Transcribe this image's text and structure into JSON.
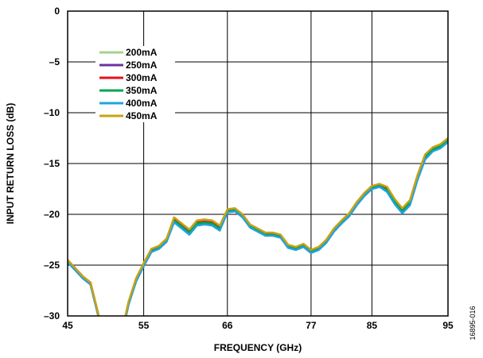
{
  "chart_data": {
    "type": "line",
    "title": "",
    "xlabel": "FREQUENCY (GHz)",
    "ylabel": "INPUT RETURN LOSS (dB)",
    "xlim": [
      45,
      95
    ],
    "ylim": [
      -30,
      0
    ],
    "x_ticks": [
      45,
      55,
      66,
      77,
      85,
      95
    ],
    "x_tick_labels": [
      "45",
      "55",
      "66",
      "77",
      "85",
      "95"
    ],
    "y_ticks": [
      0,
      -5,
      -10,
      -15,
      -20,
      -25,
      -30
    ],
    "y_tick_labels": [
      "0",
      "–5",
      "–10",
      "–15",
      "–20",
      "–25",
      "–30"
    ],
    "grid": true,
    "legend_position": "top-left",
    "figure_id": "16895-016",
    "x": [
      45,
      46,
      47,
      48,
      49,
      50,
      52.5,
      53,
      54,
      55,
      56,
      57,
      58,
      59,
      60,
      61,
      62,
      63,
      64,
      65,
      66,
      67,
      68,
      69,
      70,
      71,
      72,
      73,
      74,
      75,
      76,
      77,
      78,
      79,
      80,
      81,
      82,
      83,
      84,
      85,
      86,
      87,
      88,
      89,
      90,
      91,
      92,
      93,
      94,
      95
    ],
    "series": [
      {
        "name": "200mA",
        "color": "#a8d08d",
        "values": [
          -24.6,
          -25.4,
          -26.2,
          -26.8,
          -29.8,
          -34,
          -30.5,
          -28.8,
          -26.5,
          -25,
          -23.6,
          -23.3,
          -22.6,
          -20.6,
          -21.2,
          -21.8,
          -20.9,
          -20.8,
          -20.9,
          -21.4,
          -19.7,
          -19.6,
          -20.2,
          -21.2,
          -21.6,
          -22,
          -22,
          -22.2,
          -23.2,
          -23.4,
          -23.1,
          -23.7,
          -23.4,
          -22.7,
          -21.6,
          -20.8,
          -20.1,
          -19,
          -18.1,
          -17.4,
          -17.2,
          -17.6,
          -18.8,
          -19.7,
          -18.9,
          -16.4,
          -14.4,
          -13.6,
          -13.3,
          -12.7
        ]
      },
      {
        "name": "250mA",
        "color": "#7030a0",
        "values": [
          -24.7,
          -25.5,
          -26.3,
          -26.9,
          -29.9,
          -34,
          -30.6,
          -28.9,
          -26.6,
          -25.1,
          -23.7,
          -23.4,
          -22.7,
          -20.7,
          -21.3,
          -21.9,
          -21,
          -20.9,
          -21,
          -21.5,
          -19.8,
          -19.7,
          -20.3,
          -21.3,
          -21.7,
          -22.1,
          -22.1,
          -22.3,
          -23.3,
          -23.5,
          -23.2,
          -23.8,
          -23.5,
          -22.8,
          -21.7,
          -20.9,
          -20.2,
          -19.1,
          -18.2,
          -17.5,
          -17.3,
          -17.7,
          -18.9,
          -19.8,
          -19,
          -16.5,
          -14.5,
          -13.7,
          -13.4,
          -12.8
        ]
      },
      {
        "name": "300mA",
        "color": "#e8101e",
        "values": [
          -24.5,
          -25.3,
          -26.1,
          -26.7,
          -29.7,
          -34,
          -30.4,
          -28.7,
          -26.4,
          -24.9,
          -23.5,
          -23.2,
          -22.5,
          -20.5,
          -21.1,
          -21.7,
          -20.8,
          -20.7,
          -20.8,
          -21.3,
          -19.6,
          -19.5,
          -20.1,
          -21.1,
          -21.5,
          -21.9,
          -21.9,
          -22.1,
          -23.1,
          -23.3,
          -23,
          -23.6,
          -23.3,
          -22.6,
          -21.5,
          -20.7,
          -20,
          -18.9,
          -18,
          -17.3,
          -17.1,
          -17.5,
          -18.7,
          -19.6,
          -18.8,
          -16.3,
          -14.3,
          -13.5,
          -13.2,
          -12.6
        ]
      },
      {
        "name": "350mA",
        "color": "#00a651",
        "values": [
          -24.6,
          -25.4,
          -26.2,
          -26.8,
          -29.8,
          -34,
          -30.5,
          -28.8,
          -26.5,
          -25,
          -23.6,
          -23.3,
          -22.6,
          -20.6,
          -21.2,
          -21.8,
          -20.9,
          -20.8,
          -20.9,
          -21.4,
          -19.7,
          -19.6,
          -20.2,
          -21.2,
          -21.6,
          -22,
          -22,
          -22.2,
          -23.2,
          -23.4,
          -23.1,
          -23.7,
          -23.4,
          -22.7,
          -21.6,
          -20.8,
          -20.1,
          -19,
          -18.1,
          -17.4,
          -17.2,
          -17.6,
          -18.8,
          -19.7,
          -18.9,
          -16.4,
          -14.4,
          -13.6,
          -13.3,
          -12.7
        ]
      },
      {
        "name": "400mA",
        "color": "#1fa3e0",
        "values": [
          -24.7,
          -25.5,
          -26.3,
          -26.9,
          -29.9,
          -34,
          -30.6,
          -28.9,
          -26.6,
          -25.1,
          -23.7,
          -23.4,
          -22.7,
          -20.8,
          -21.4,
          -22,
          -21.1,
          -21,
          -21.1,
          -21.6,
          -19.8,
          -19.7,
          -20.3,
          -21.3,
          -21.7,
          -22.1,
          -22.1,
          -22.3,
          -23.3,
          -23.5,
          -23.2,
          -23.8,
          -23.5,
          -22.8,
          -21.7,
          -20.9,
          -20.2,
          -19.1,
          -18.2,
          -17.5,
          -17.3,
          -17.8,
          -19,
          -19.9,
          -19.1,
          -16.6,
          -14.6,
          -13.8,
          -13.5,
          -12.9
        ]
      },
      {
        "name": "450mA",
        "color": "#c9a214",
        "values": [
          -24.5,
          -25.3,
          -26.1,
          -26.7,
          -29.7,
          -34,
          -30.3,
          -28.6,
          -26.3,
          -24.8,
          -23.4,
          -23.1,
          -22.4,
          -20.3,
          -20.9,
          -21.5,
          -20.6,
          -20.5,
          -20.6,
          -21.1,
          -19.5,
          -19.4,
          -20,
          -21,
          -21.4,
          -21.8,
          -21.8,
          -22,
          -23,
          -23.2,
          -22.9,
          -23.5,
          -23.2,
          -22.5,
          -21.4,
          -20.6,
          -19.9,
          -18.8,
          -17.9,
          -17.2,
          -17,
          -17.3,
          -18.5,
          -19.4,
          -18.6,
          -16.1,
          -14.1,
          -13.4,
          -13.1,
          -12.5
        ]
      }
    ]
  }
}
